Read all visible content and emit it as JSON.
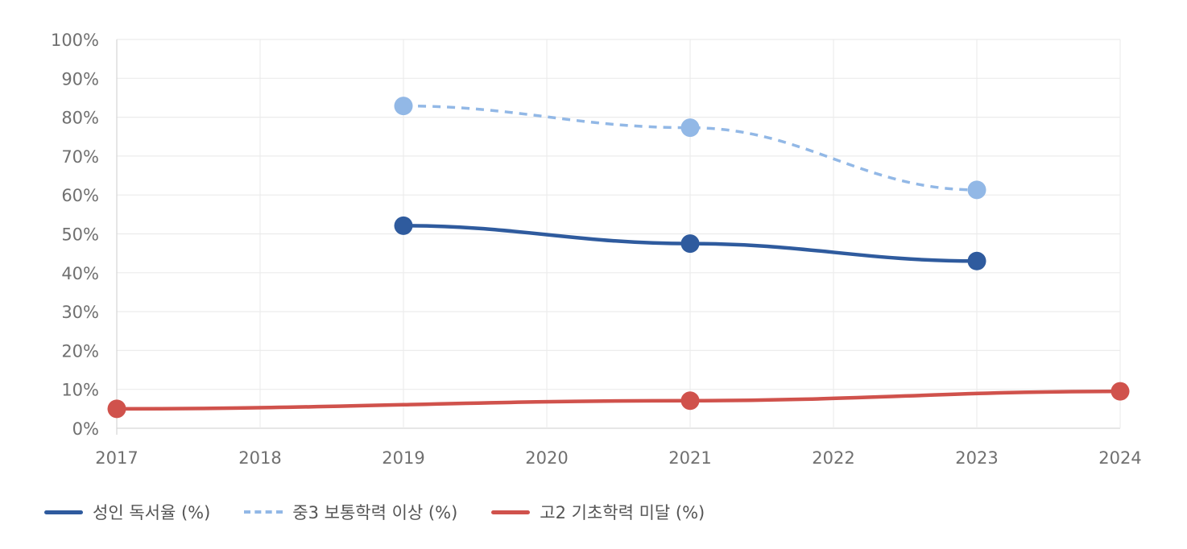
{
  "chart_data": {
    "type": "line",
    "x": [
      "2017",
      "2018",
      "2019",
      "2020",
      "2021",
      "2022",
      "2023",
      "2024"
    ],
    "ylim": [
      0,
      100
    ],
    "yticks": [
      "0%",
      "10%",
      "20%",
      "30%",
      "40%",
      "50%",
      "60%",
      "70%",
      "80%",
      "90%",
      "100%"
    ],
    "grid": true,
    "legend_position": "bottom-left",
    "series": [
      {
        "name": "성인 독서율 (%)",
        "color": "#2f5b9e",
        "style": "solid",
        "points": [
          {
            "x": "2019",
            "y": 52.1
          },
          {
            "x": "2021",
            "y": 47.5
          },
          {
            "x": "2023",
            "y": 43.0
          }
        ]
      },
      {
        "name": "중3 보통학력 이상 (%)",
        "color": "#92b8e6",
        "style": "dashed",
        "points": [
          {
            "x": "2019",
            "y": 82.9
          },
          {
            "x": "2021",
            "y": 77.3
          },
          {
            "x": "2023",
            "y": 61.3
          }
        ]
      },
      {
        "name": "고2 기초학력 미달 (%)",
        "color": "#d0524c",
        "style": "solid",
        "points": [
          {
            "x": "2017",
            "y": 5.0
          },
          {
            "x": "2021",
            "y": 7.1
          },
          {
            "x": "2024",
            "y": 9.5
          }
        ]
      }
    ]
  }
}
